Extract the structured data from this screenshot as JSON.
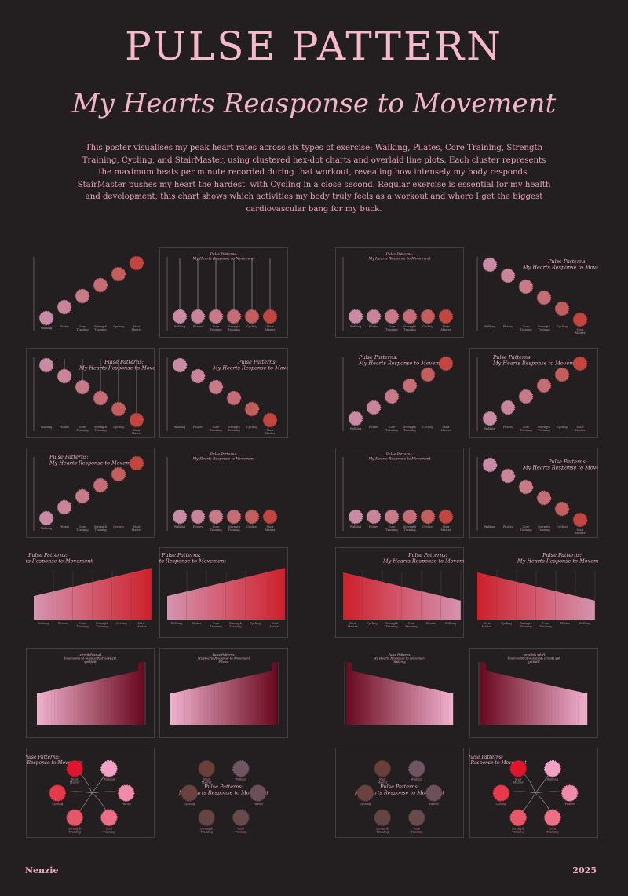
{
  "poster": {
    "title": "PULSE PATTERN",
    "subtitle": "My Hearts Reasponse to Movement",
    "description": "This poster visualises my peak heart rates across six types of exercise: Walking, Pilates, Core Training, Strength Training, Cycling, and StairMaster, using clustered hex-dot charts and overlaid line plots. Each cluster represents the maximum beats per minute recorded during that workout, revealing how intensely my body responds. StairMaster pushes my heart the hardest, with Cycling in a close second. Regular exercise is essential for my health and development; this chart shows which activities my body truly feels as a workout and where I get the biggest cardiovascular bang for my buck.",
    "author": "Nenzie",
    "year": "2025"
  },
  "panel_title": "Pulse Patterns: My Hearts Response to Movement",
  "bar_subtitles": [
    "Walking",
    "Pilates"
  ],
  "exercises": [
    "Walking",
    "Pilates",
    "Core Training",
    "Strength Training",
    "Cycling",
    "Stair Master"
  ],
  "colors": {
    "background": "#231f20",
    "text_pink": "#f4b8c8",
    "cluster_scale": [
      "#c98aa6",
      "#c9849a",
      "#c77a88",
      "#c56c74",
      "#c25e5e",
      "#c2463f"
    ],
    "radial_bright": [
      "#f2a0c4",
      "#ef8aa8",
      "#ec6f86",
      "#e8566a",
      "#e63a4a",
      "#e0142c"
    ],
    "radial_brown": [
      "#6e5562",
      "#6c5058",
      "#674a4c",
      "#654543",
      "#6a4240",
      "#6c3e38"
    ],
    "bar_start": "#f0b0cc",
    "bar_end": "#6a0a20"
  },
  "panels": [
    {
      "type": "diag-up",
      "title": false,
      "lines": false
    },
    {
      "type": "flat",
      "title": true,
      "lines": true
    },
    {
      "type": "flat",
      "title": true,
      "lines": false
    },
    {
      "type": "diag-down",
      "title": true,
      "lines": false
    },
    {
      "type": "diag-down",
      "title": true,
      "lines": true
    },
    {
      "type": "diag-down",
      "title": true,
      "lines": false
    },
    {
      "type": "diag-up",
      "title": true,
      "lines": false
    },
    {
      "type": "diag-up",
      "title": true,
      "lines": false
    },
    {
      "type": "diag-up",
      "title": true,
      "lines": false
    },
    {
      "type": "flat",
      "title": true,
      "lines": false
    },
    {
      "type": "flat",
      "title": true,
      "lines": false
    },
    {
      "type": "diag-down",
      "title": true,
      "lines": false
    },
    {
      "type": "dense",
      "direction": "up"
    },
    {
      "type": "dense",
      "direction": "up"
    },
    {
      "type": "dense",
      "direction": "down"
    },
    {
      "type": "dense",
      "direction": "down"
    },
    {
      "type": "bars",
      "direction": "up",
      "subtitle": 0,
      "mirrored": true
    },
    {
      "type": "bars",
      "direction": "up",
      "subtitle": 1,
      "mirrored": false
    },
    {
      "type": "bars",
      "direction": "down",
      "subtitle": 0,
      "mirrored": false
    },
    {
      "type": "bars",
      "direction": "down",
      "subtitle": 0,
      "mirrored": true
    },
    {
      "type": "radial",
      "palette": "bright",
      "spokes": true
    },
    {
      "type": "radial",
      "palette": "brown",
      "spokes": false
    },
    {
      "type": "radial",
      "palette": "brown",
      "spokes": false
    },
    {
      "type": "radial",
      "palette": "bright",
      "spokes": true
    }
  ]
}
